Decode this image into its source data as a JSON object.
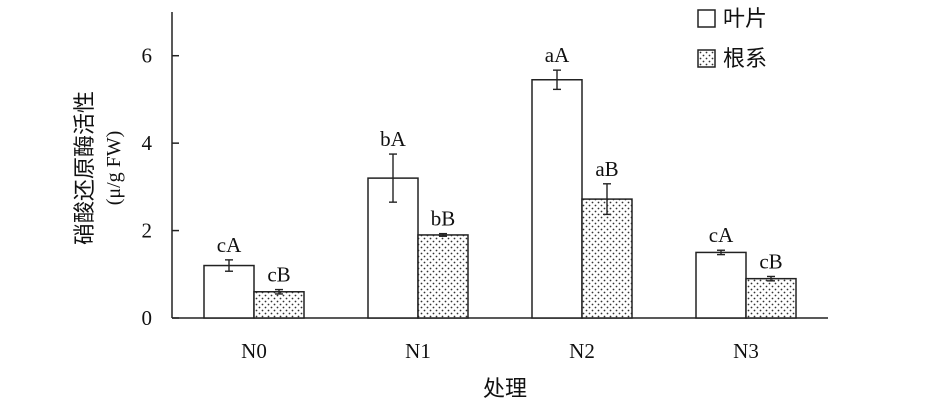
{
  "chart_data": {
    "type": "bar",
    "title": "",
    "xlabel": "处理",
    "ylabel_line1": "硝酸还原酶活性",
    "ylabel_line2": "(μ/g FW)",
    "categories": [
      "N0",
      "N1",
      "N2",
      "N3"
    ],
    "ylim": [
      0,
      7
    ],
    "yticks": [
      0,
      2,
      4,
      6
    ],
    "grid": false,
    "legend_position": "top-right",
    "series": [
      {
        "name": "叶片",
        "pattern": "white",
        "values": [
          1.2,
          3.2,
          5.45,
          1.5
        ],
        "errors": [
          0.13,
          0.55,
          0.22,
          0.05
        ],
        "labels": [
          "cA",
          "bA",
          "aA",
          "cA"
        ]
      },
      {
        "name": "根系",
        "pattern": "dotted",
        "values": [
          0.6,
          1.9,
          2.72,
          0.9
        ],
        "errors": [
          0.05,
          0.03,
          0.35,
          0.05
        ],
        "labels": [
          "cB",
          "bB",
          "aB",
          "cB"
        ]
      }
    ]
  }
}
